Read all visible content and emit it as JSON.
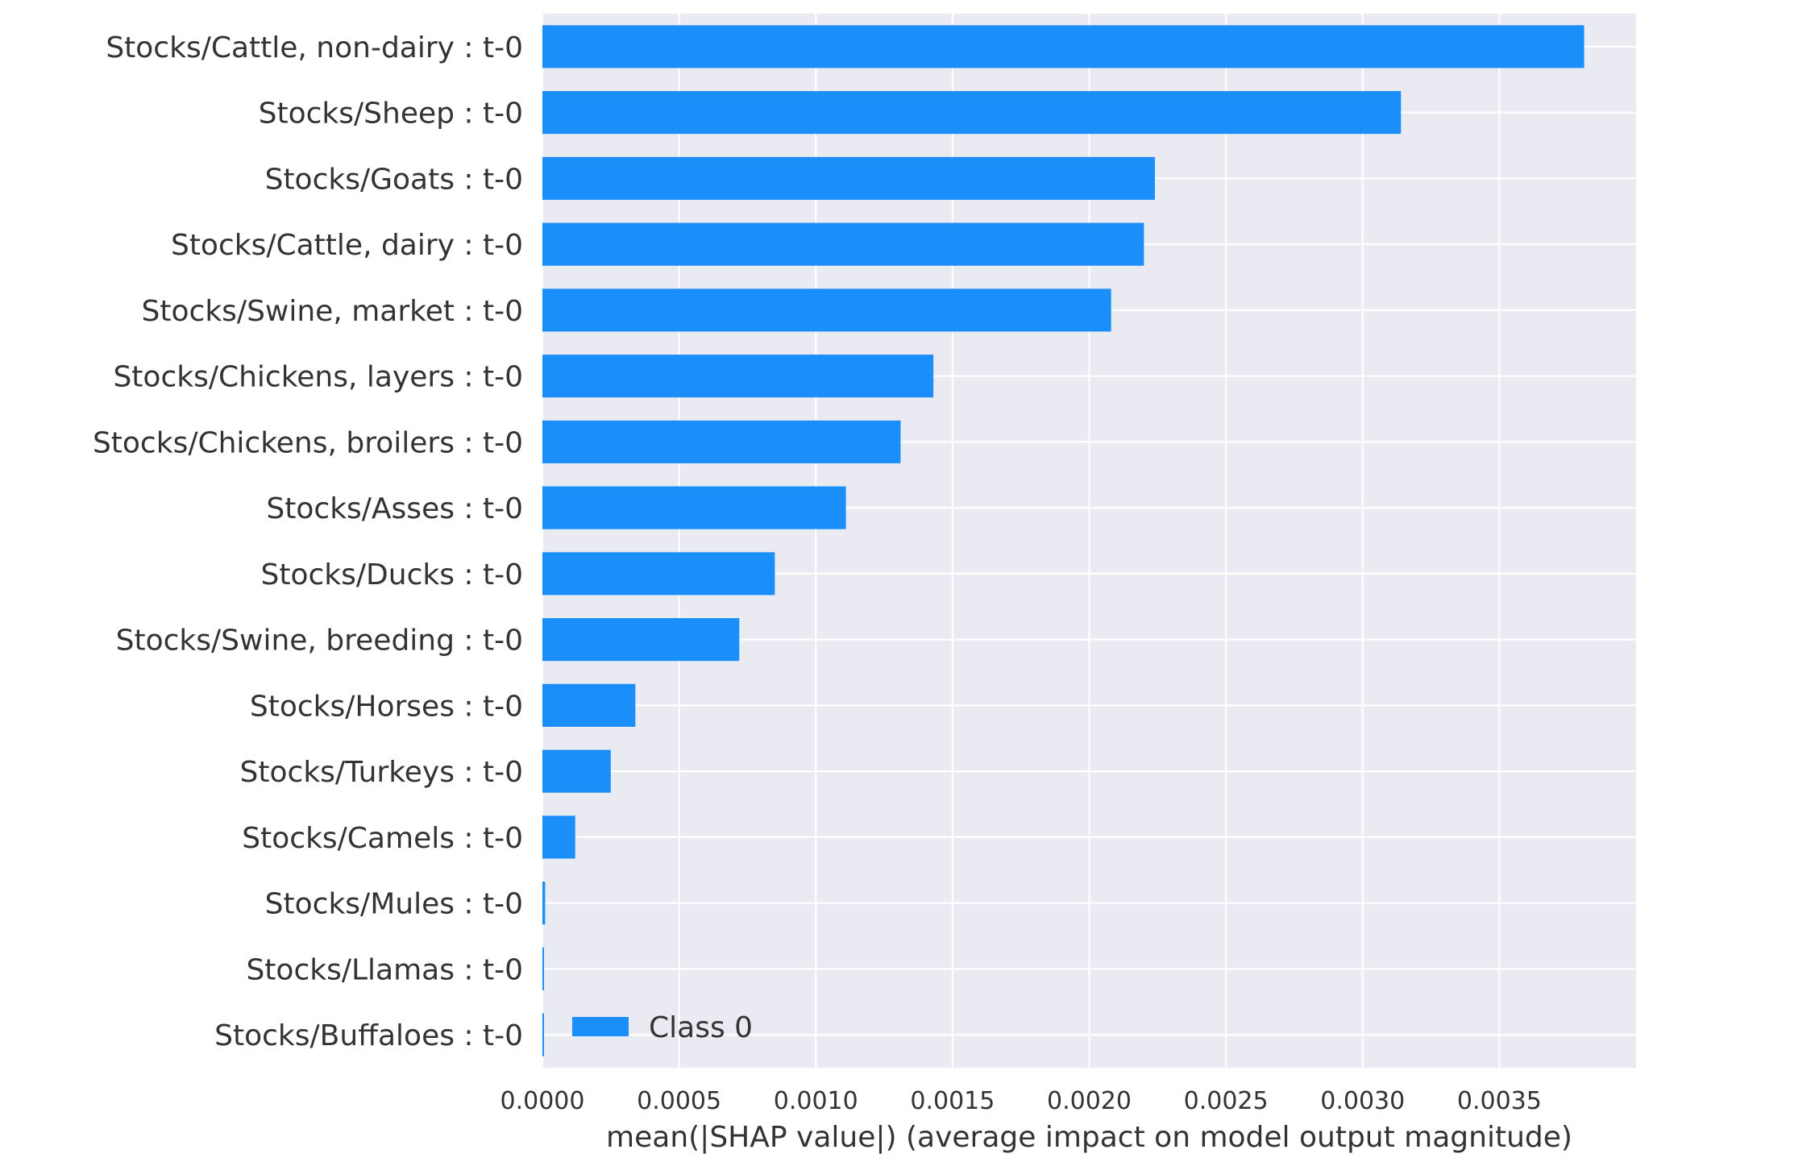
{
  "chart_data": {
    "type": "bar",
    "orientation": "horizontal",
    "categories": [
      "Stocks/Cattle, non-dairy : t-0",
      "Stocks/Sheep : t-0",
      "Stocks/Goats : t-0",
      "Stocks/Cattle, dairy : t-0",
      "Stocks/Swine, market : t-0",
      "Stocks/Chickens, layers : t-0",
      "Stocks/Chickens, broilers : t-0",
      "Stocks/Asses : t-0",
      "Stocks/Ducks : t-0",
      "Stocks/Swine, breeding : t-0",
      "Stocks/Horses : t-0",
      "Stocks/Turkeys : t-0",
      "Stocks/Camels : t-0",
      "Stocks/Mules : t-0",
      "Stocks/Llamas : t-0",
      "Stocks/Buffaloes : t-0"
    ],
    "series": [
      {
        "name": "Class 0",
        "color": "#1a8ef9",
        "values": [
          0.00381,
          0.00314,
          0.00224,
          0.0022,
          0.00208,
          0.00143,
          0.00131,
          0.00111,
          0.00085,
          0.00072,
          0.00034,
          0.00025,
          0.00012,
          1e-05,
          5e-06,
          3e-06
        ]
      }
    ],
    "xlabel": "mean(|SHAP value|) (average impact on model output magnitude)",
    "ylabel": "",
    "title": "",
    "xlim": [
      0,
      0.004
    ],
    "xticks": [
      0.0,
      0.0005,
      0.001,
      0.0015,
      0.002,
      0.0025,
      0.003,
      0.0035
    ],
    "xtick_labels": [
      "0.0000",
      "0.0005",
      "0.0010",
      "0.0015",
      "0.0020",
      "0.0025",
      "0.0030",
      "0.0035"
    ],
    "grid": true,
    "legend": "lower-left",
    "style": {
      "background": "#eaeaf2",
      "grid_color": "#ffffff",
      "text_color": "#333333"
    }
  }
}
